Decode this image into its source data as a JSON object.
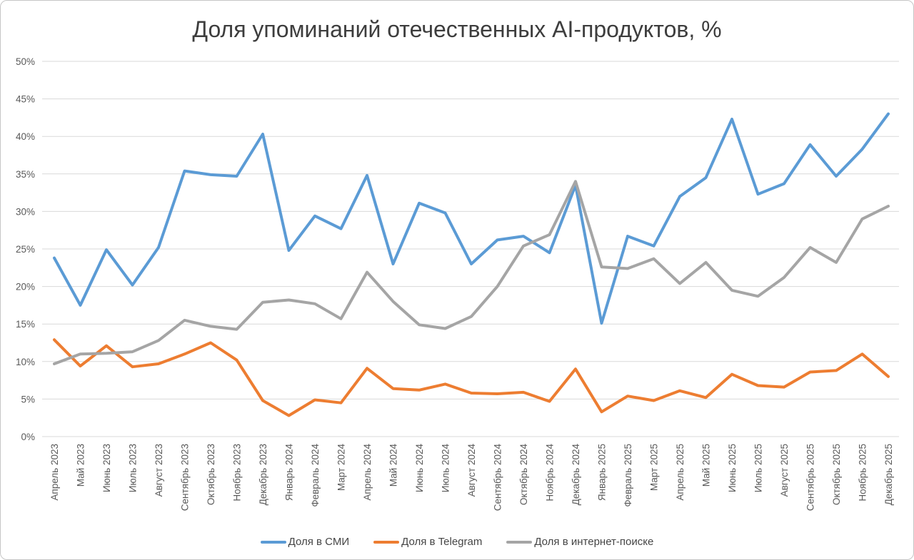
{
  "window": {
    "background": "#ffffff",
    "border_color": "#c6c6c6"
  },
  "styles": {
    "gridline_color": "#d9d9d9",
    "axis_label_color": "#595959",
    "title_color": "#3d3d3d",
    "legend_text_color": "#454545"
  },
  "chart_data": {
    "type": "line",
    "title": "Доля упоминаний отечественных AI-продуктов, %",
    "grid": "horizontal",
    "legend_position": "bottom",
    "x_labels": [
      "Апрель 2023",
      "Май 2023",
      "Июнь 2023",
      "Июль 2023",
      "Август 2023",
      "Сентябрь 2023",
      "Октябрь 2023",
      "Ноябрь 2023",
      "Декабрь 2023",
      "Январь 2024",
      "Февраль 2024",
      "Март 2024",
      "Апрель 2024",
      "Май 2024",
      "Июнь 2024",
      "Июль 2024",
      "Август 2024",
      "Сентябрь 2024",
      "Октябрь 2024",
      "Ноябрь 2024",
      "Декабрь 2024",
      "Январь 2025",
      "Февраль 2025",
      "Март 2025",
      "Апрель 2025",
      "Май 2025",
      "Июнь 2025",
      "Июль 2025",
      "Август 2025",
      "Сентябрь 2025",
      "Октябрь 2025",
      "Ноябрь 2025",
      "Декабрь 2025"
    ],
    "y_axis": {
      "min": 0,
      "max": 50,
      "step": 5,
      "tick_labels": [
        "0%",
        "5%",
        "10%",
        "15%",
        "20%",
        "25%",
        "30%",
        "35%",
        "40%",
        "45%",
        "50%"
      ]
    },
    "series": [
      {
        "name": "Доля в СМИ",
        "color": "#5B9BD5",
        "values": [
          23.8,
          17.5,
          24.9,
          20.2,
          25.2,
          35.4,
          34.9,
          34.7,
          40.3,
          24.8,
          29.4,
          27.7,
          34.8,
          23.0,
          31.1,
          29.8,
          23.0,
          26.2,
          26.7,
          24.5,
          33.5,
          15.1,
          26.7,
          25.4,
          32.0,
          34.5,
          42.3,
          32.3,
          33.7,
          38.9,
          34.7,
          38.3,
          43.0
        ]
      },
      {
        "name": "Доля в Telegram",
        "color": "#ED7D31",
        "values": [
          12.9,
          9.4,
          12.1,
          9.3,
          9.7,
          11.0,
          12.5,
          10.2,
          4.8,
          2.8,
          4.9,
          4.5,
          9.1,
          6.4,
          6.2,
          7.0,
          5.8,
          5.7,
          5.9,
          4.7,
          9.0,
          3.3,
          5.4,
          4.8,
          6.1,
          5.2,
          8.3,
          6.8,
          6.6,
          8.6,
          8.8,
          11.0,
          8.0
        ]
      },
      {
        "name": "Доля в интернет-поиске",
        "color": "#A5A5A5",
        "values": [
          9.7,
          11.0,
          11.1,
          11.3,
          12.8,
          15.5,
          14.7,
          14.3,
          17.9,
          18.2,
          17.7,
          15.7,
          21.9,
          18.0,
          14.9,
          14.4,
          16.0,
          20.0,
          25.4,
          26.9,
          34.0,
          22.6,
          22.4,
          23.7,
          20.4,
          23.2,
          19.5,
          18.7,
          21.2,
          25.2,
          23.2,
          29.0,
          30.7
        ]
      }
    ]
  }
}
